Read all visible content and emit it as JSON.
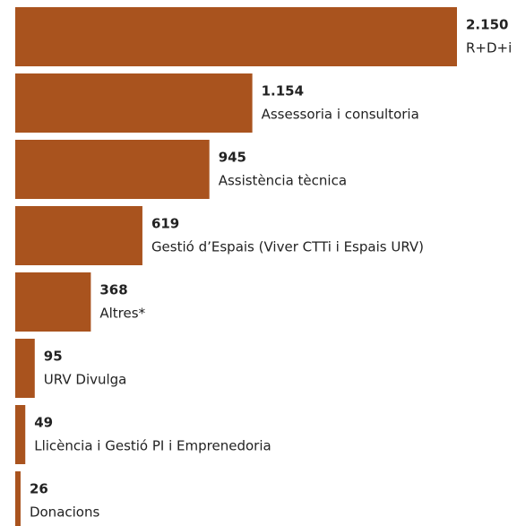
{
  "chart_data": {
    "type": "bar",
    "orientation": "horizontal",
    "categories": [
      "R+D+i",
      "Assessoria i consultoria",
      "Assistència tècnica",
      "Gestió d’Espais (Viver CTTi i Espais URV)",
      "Altres*",
      "URV Divulga",
      "Llicència i Gestió PI i Emprenedoria",
      "Donacions"
    ],
    "values": [
      2150,
      1154,
      945,
      619,
      368,
      95,
      49,
      26
    ],
    "value_labels": [
      "2.150",
      "1.154",
      "945",
      "619",
      "368",
      "95",
      "49",
      "26"
    ],
    "color": "#a9531e"
  }
}
